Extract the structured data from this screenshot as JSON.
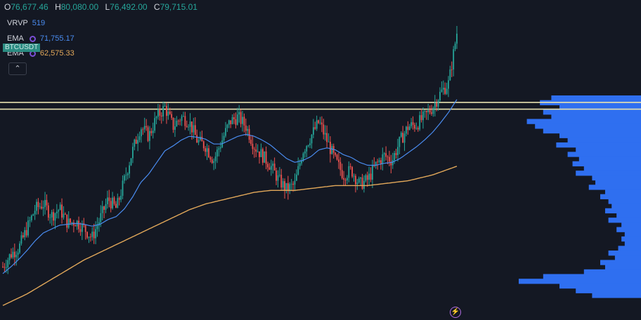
{
  "legend": {
    "o_key": "O",
    "o_val": "76,677.46",
    "h_key": "H",
    "h_val": "80,080.00",
    "l_key": "L",
    "l_val": "76,492.00",
    "c_key": "C",
    "c_val": "79,715.01"
  },
  "vrvp": {
    "label": "VRVP",
    "value": "519"
  },
  "ema_fast": {
    "label": "EMA",
    "value": "71,755.17",
    "color": "#4a8cf0"
  },
  "ema_slow": {
    "label": "EMA",
    "value": "62,575.33",
    "color": "#e2a85a"
  },
  "symbol": "BTCUSDT",
  "collapse_icon": "chevron-up-icon",
  "bolt_icon": "lightning-icon",
  "colors": {
    "up": "#26a69a",
    "down": "#ef5350",
    "level": "#e8e2b0",
    "volume": "#2f6ff0",
    "background": "#141823"
  },
  "chart_data": {
    "type": "candlestick",
    "ylim": [
      50000,
      82000
    ],
    "horizontal_levels": [
      72500,
      71800
    ],
    "close_path": [
      55500,
      56800,
      57500,
      59500,
      61500,
      62000,
      60800,
      61500,
      60000,
      60200,
      59500,
      58500,
      60500,
      62500,
      61500,
      64500,
      67500,
      70000,
      69000,
      71000,
      72000,
      70000,
      71000,
      70500,
      68500,
      68000,
      66500,
      68500,
      70500,
      71000,
      70000,
      68000,
      67000,
      66000,
      64500,
      63500,
      64000,
      67500,
      69000,
      70500,
      68500,
      66500,
      65000,
      65500,
      64000,
      64500,
      66000,
      67000,
      66500,
      68500,
      70000,
      70200,
      71000,
      72000,
      73500,
      74500,
      79715
    ],
    "ema_fast_path": [
      54800,
      55500,
      56300,
      57200,
      58200,
      59000,
      59400,
      59800,
      59900,
      60000,
      59900,
      59700,
      59900,
      60400,
      60700,
      61500,
      62700,
      64200,
      65100,
      66300,
      67500,
      68000,
      68600,
      69000,
      68900,
      68700,
      68200,
      68200,
      68600,
      69000,
      69200,
      69000,
      68600,
      68100,
      67400,
      66700,
      66300,
      66500,
      66900,
      67600,
      67800,
      67600,
      67100,
      66800,
      66300,
      66000,
      66000,
      66200,
      66300,
      66700,
      67300,
      67900,
      68600,
      69400,
      70400,
      71500,
      72800
    ],
    "ema_slow_path": [
      51500,
      51900,
      52300,
      52700,
      53200,
      53700,
      54200,
      54700,
      55200,
      55700,
      56200,
      56600,
      57000,
      57400,
      57800,
      58200,
      58600,
      59000,
      59400,
      59800,
      60200,
      60600,
      61000,
      61400,
      61700,
      62000,
      62200,
      62400,
      62600,
      62800,
      63000,
      63200,
      63300,
      63400,
      63400,
      63400,
      63400,
      63500,
      63600,
      63700,
      63800,
      63900,
      63900,
      63900,
      63900,
      63900,
      64000,
      64100,
      64200,
      64300,
      64400,
      64600,
      64800,
      65000,
      65300,
      65600,
      65900
    ],
    "volume_profile": [
      0.55,
      0.62,
      0.5,
      0.6,
      0.55,
      0.7,
      0.65,
      0.6,
      0.5,
      0.45,
      0.52,
      0.4,
      0.45,
      0.38,
      0.42,
      0.35,
      0.4,
      0.3,
      0.28,
      0.32,
      0.22,
      0.25,
      0.2,
      0.18,
      0.22,
      0.15,
      0.2,
      0.12,
      0.15,
      0.1,
      0.12,
      0.1,
      0.14,
      0.2,
      0.16,
      0.25,
      0.22,
      0.35,
      0.6,
      0.75,
      0.5,
      0.4,
      0.3
    ]
  }
}
